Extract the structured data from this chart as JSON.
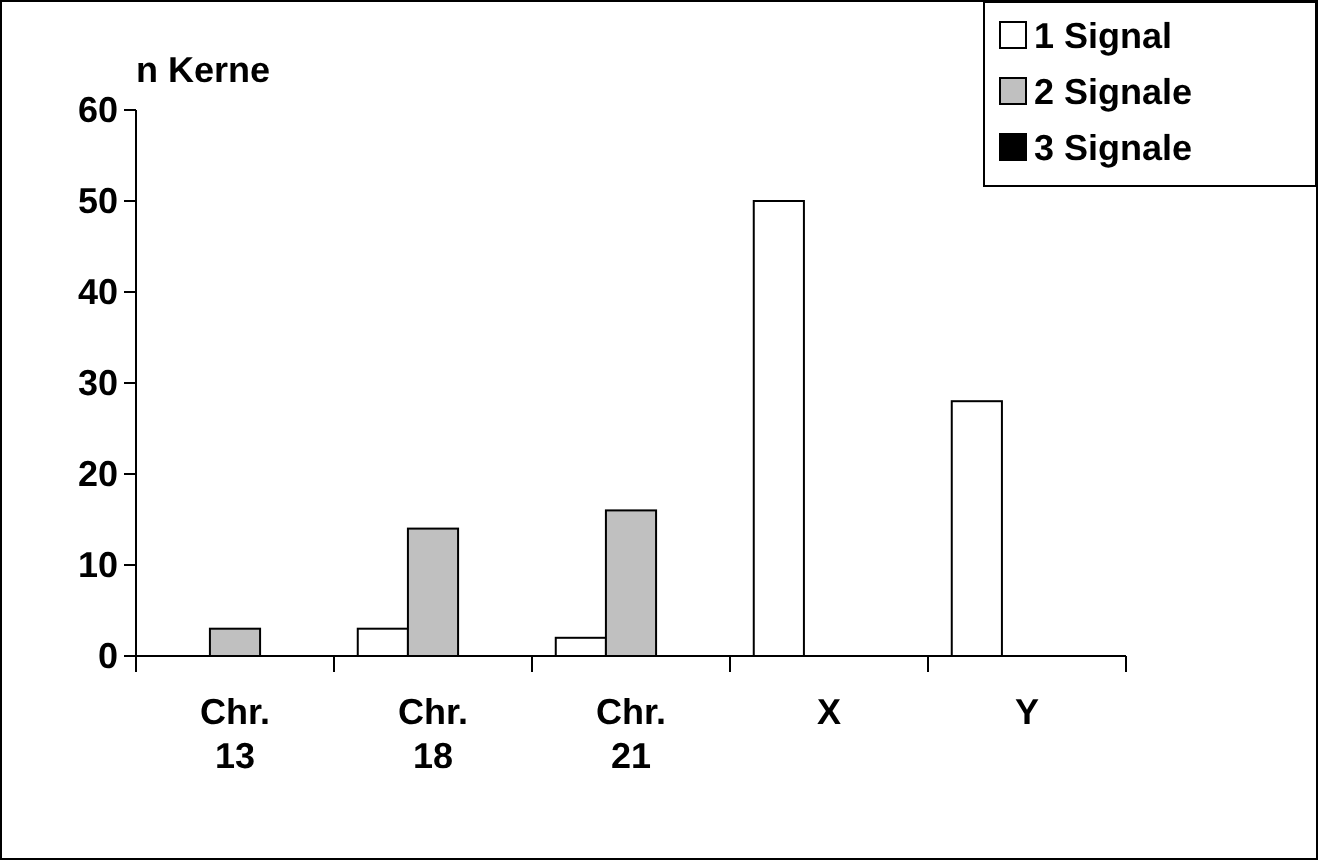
{
  "chart_data": {
    "type": "bar",
    "ylabel": "n Kerne",
    "categories": [
      "Chr.\n13",
      "Chr.\n18",
      "Chr.\n21",
      "X",
      "Y"
    ],
    "series": [
      {
        "name": "1 Signal",
        "color": "#ffffff",
        "values": [
          0,
          3,
          2,
          50,
          28
        ]
      },
      {
        "name": "2 Signale",
        "color": "#c0c0c0",
        "values": [
          3,
          14,
          16,
          0,
          0
        ]
      },
      {
        "name": "3 Signale",
        "color": "#000000",
        "values": [
          0,
          0,
          0,
          0,
          0
        ]
      }
    ],
    "ylim": [
      0,
      60
    ],
    "yticks": [
      0,
      10,
      20,
      30,
      40,
      50,
      60
    ],
    "grid": false,
    "legend": "top right"
  }
}
